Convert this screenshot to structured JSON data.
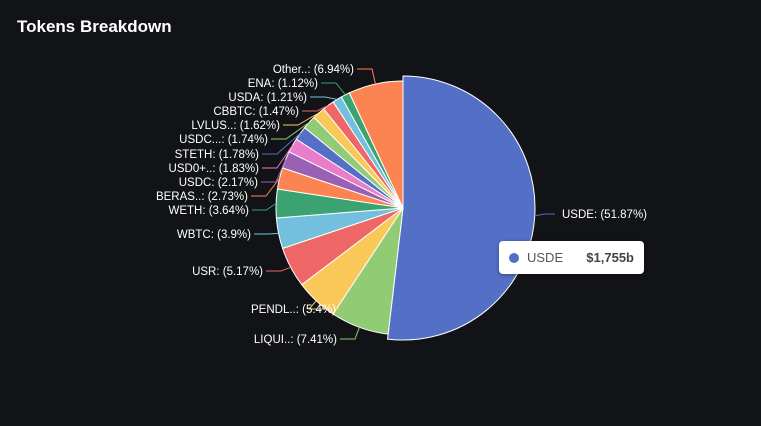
{
  "header": {
    "title": "Tokens Breakdown"
  },
  "chart_data": {
    "type": "pie",
    "title": "Tokens Breakdown",
    "slices": [
      {
        "label": "USDE",
        "display": "USDE: (51.87%)",
        "value": 51.87,
        "color": "#5470c6",
        "labelSide": "right"
      },
      {
        "label": "LIQUI..",
        "display": "LIQUI..: (7.41%)",
        "value": 7.41,
        "color": "#91cc75",
        "labelSide": "left"
      },
      {
        "label": "PENDL..",
        "display": "PENDL..: (5.4%)",
        "value": 5.4,
        "color": "#fac858",
        "labelSide": "left"
      },
      {
        "label": "USR",
        "display": "USR: (5.17%)",
        "value": 5.17,
        "color": "#ee6666",
        "labelSide": "left"
      },
      {
        "label": "WBTC",
        "display": "WBTC: (3.9%)",
        "value": 3.9,
        "color": "#73c0de",
        "labelSide": "left"
      },
      {
        "label": "WETH",
        "display": "WETH: (3.64%)",
        "value": 3.64,
        "color": "#3ba272",
        "labelSide": "left"
      },
      {
        "label": "BERAS..",
        "display": "BERAS..: (2.73%)",
        "value": 2.73,
        "color": "#fc8452",
        "labelSide": "left"
      },
      {
        "label": "USDC",
        "display": "USDC: (2.17%)",
        "value": 2.17,
        "color": "#9a60b4",
        "labelSide": "left"
      },
      {
        "label": "USD0+..",
        "display": "USD0+..: (1.83%)",
        "value": 1.83,
        "color": "#ea7ccc",
        "labelSide": "left"
      },
      {
        "label": "STETH",
        "display": "STETH: (1.78%)",
        "value": 1.78,
        "color": "#5470c6",
        "labelSide": "left"
      },
      {
        "label": "USDC...",
        "display": "USDC...: (1.74%)",
        "value": 1.74,
        "color": "#91cc75",
        "labelSide": "left"
      },
      {
        "label": "LVLUS..",
        "display": "LVLUS..: (1.62%)",
        "value": 1.62,
        "color": "#fac858",
        "labelSide": "left"
      },
      {
        "label": "CBBTC",
        "display": "CBBTC: (1.47%)",
        "value": 1.47,
        "color": "#ee6666",
        "labelSide": "left"
      },
      {
        "label": "USDA",
        "display": "USDA: (1.21%)",
        "value": 1.21,
        "color": "#73c0de",
        "labelSide": "left"
      },
      {
        "label": "ENA",
        "display": "ENA: (1.12%)",
        "value": 1.12,
        "color": "#3ba272",
        "labelSide": "left"
      },
      {
        "label": "Other..",
        "display": "Other..: (6.94%)",
        "value": 6.94,
        "color": "#fc8452",
        "labelSide": "left"
      }
    ],
    "startAngleDeg": 0,
    "clockwise": true,
    "highlighted": "USDE"
  },
  "tooltip": {
    "name": "USDE",
    "value": "$1,755b",
    "color": "#5470c6"
  }
}
